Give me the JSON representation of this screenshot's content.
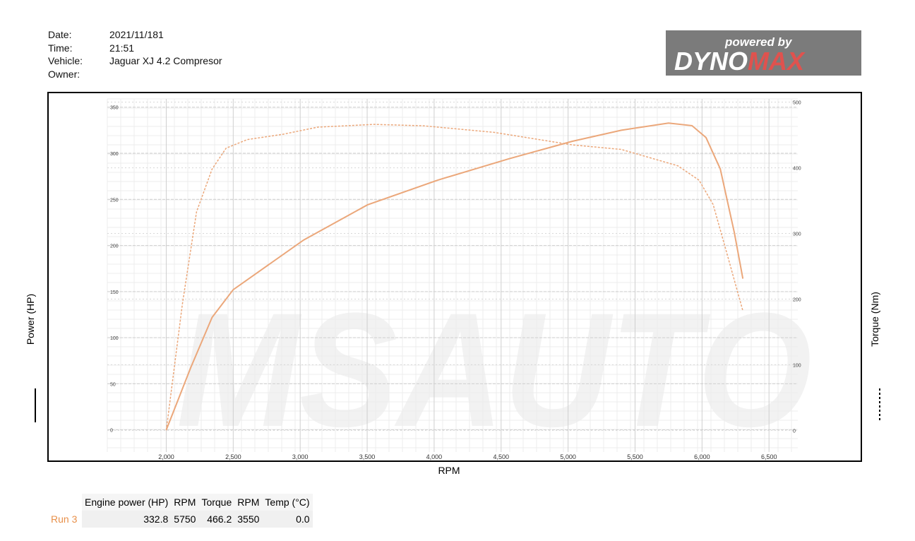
{
  "header": {
    "fields": [
      {
        "label": "Date:",
        "value": "2021/11/181"
      },
      {
        "label": "Time:",
        "value": "21:51"
      },
      {
        "label": "Vehicle:",
        "value": "Jaguar XJ 4.2 Compresor"
      },
      {
        "label": "Owner:"
      }
    ],
    "logo": {
      "tagline": "powered by",
      "brand": [
        "DYNO",
        "MAX"
      ]
    }
  },
  "chart_data": {
    "type": "line",
    "watermark": "MSAUTO",
    "x_label": "RPM",
    "y_label": "Power (HP)",
    "y2_label": "Torque (Nm)",
    "xlim": [
      1560,
      6715
    ],
    "ylim": [
      -24,
      359
    ],
    "y2lim": [
      -33,
      505
    ],
    "xticks": [
      {
        "value": 2000,
        "label": "2,000"
      },
      {
        "value": 2500,
        "label": "2,500"
      },
      {
        "value": 3000,
        "label": "3,000"
      },
      {
        "value": 3500,
        "label": "3,500"
      },
      {
        "value": 4000,
        "label": "4,000"
      },
      {
        "value": 4500,
        "label": "4,500"
      },
      {
        "value": 5000,
        "label": "5,000"
      },
      {
        "value": 5500,
        "label": "5,500"
      },
      {
        "value": 6000,
        "label": "6,000"
      },
      {
        "value": 6500,
        "label": "6,500"
      }
    ],
    "yticks": [
      0,
      50,
      100,
      150,
      200,
      250,
      300,
      350
    ],
    "y2ticks": [
      0,
      100,
      200,
      300,
      400,
      500
    ],
    "grid": true,
    "series": [
      {
        "name": "Power",
        "color": "#eba77a",
        "dash": false,
        "x": [
          2000,
          2184,
          2342,
          2500,
          2763,
          3027,
          3502,
          4029,
          4556,
          5030,
          5398,
          5750,
          5925,
          6030,
          6136,
          6241,
          6305
        ],
        "values": [
          0,
          68,
          122,
          152,
          179,
          206,
          244,
          271,
          294,
          313,
          325,
          332.8,
          330,
          317,
          283,
          214,
          164
        ]
      },
      {
        "name": "Torque",
        "color": "#eba77a",
        "dash": true,
        "axis": "y2",
        "x": [
          2000,
          2121,
          2226,
          2342,
          2447,
          2605,
          2869,
          3132,
          3550,
          3920,
          4447,
          5030,
          5398,
          5820,
          5978,
          6083,
          6188,
          6305
        ],
        "values": [
          0,
          193,
          333,
          398,
          430,
          443,
          451,
          462,
          466.2,
          464,
          454,
          435,
          428,
          403,
          381,
          344,
          268,
          182
        ]
      }
    ]
  },
  "table": {
    "columns": [
      "Engine power (HP)",
      "RPM",
      "Torque",
      "RPM",
      "Temp (°C)"
    ],
    "rows": [
      [
        "Run 3",
        332.8,
        5750,
        466.2,
        3550,
        "0.0"
      ]
    ]
  }
}
